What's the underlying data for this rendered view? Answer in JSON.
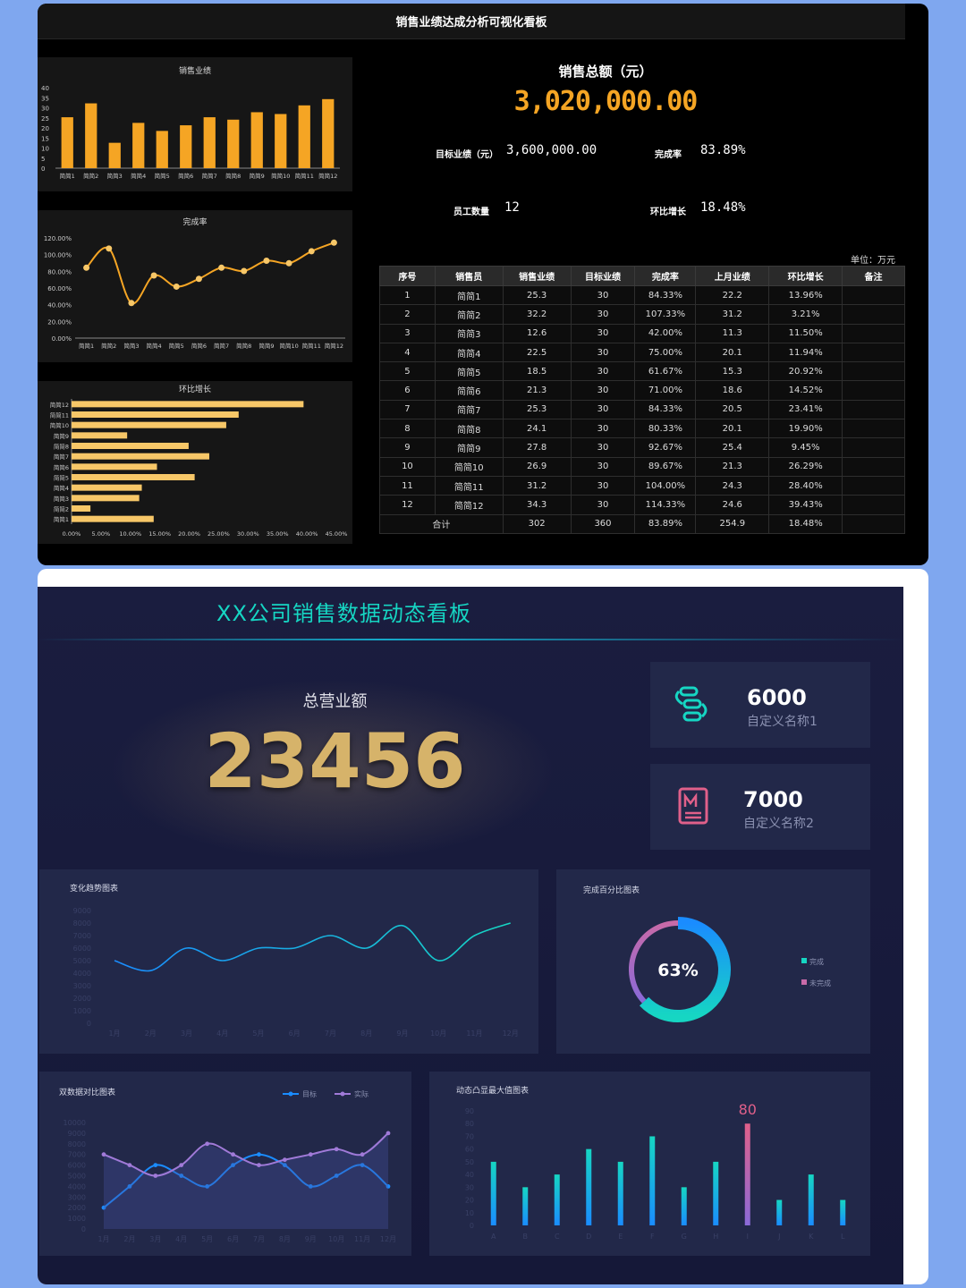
{
  "top": {
    "title": "销售业绩达成分析可视化看板",
    "sales_total_label": "销售总额（元）",
    "sales_total_value": "3,020,000.00",
    "target_label": "目标业绩（元）",
    "target_value": "3,600,000.00",
    "rate_label": "完成率",
    "rate_value": "83.89%",
    "staff_label": "员工数量",
    "staff_value": "12",
    "growth_label": "环比增长",
    "growth_value": "18.48%",
    "unit": "单位：万元",
    "table": {
      "headers": [
        "序号",
        "销售员",
        "销售业绩",
        "目标业绩",
        "完成率",
        "上月业绩",
        "环比增长",
        "备注"
      ],
      "rows": [
        [
          "1",
          "简简1",
          "25.3",
          "30",
          "84.33%",
          "22.2",
          "13.96%",
          ""
        ],
        [
          "2",
          "简简2",
          "32.2",
          "30",
          "107.33%",
          "31.2",
          "3.21%",
          ""
        ],
        [
          "3",
          "简简3",
          "12.6",
          "30",
          "42.00%",
          "11.3",
          "11.50%",
          ""
        ],
        [
          "4",
          "简简4",
          "22.5",
          "30",
          "75.00%",
          "20.1",
          "11.94%",
          ""
        ],
        [
          "5",
          "简简5",
          "18.5",
          "30",
          "61.67%",
          "15.3",
          "20.92%",
          ""
        ],
        [
          "6",
          "简简6",
          "21.3",
          "30",
          "71.00%",
          "18.6",
          "14.52%",
          ""
        ],
        [
          "7",
          "简简7",
          "25.3",
          "30",
          "84.33%",
          "20.5",
          "23.41%",
          ""
        ],
        [
          "8",
          "简简8",
          "24.1",
          "30",
          "80.33%",
          "20.1",
          "19.90%",
          ""
        ],
        [
          "9",
          "简简9",
          "27.8",
          "30",
          "92.67%",
          "25.4",
          "9.45%",
          ""
        ],
        [
          "10",
          "简简10",
          "26.9",
          "30",
          "89.67%",
          "21.3",
          "26.29%",
          ""
        ],
        [
          "11",
          "简简11",
          "31.2",
          "30",
          "104.00%",
          "24.3",
          "28.40%",
          ""
        ],
        [
          "12",
          "简简12",
          "34.3",
          "30",
          "114.33%",
          "24.6",
          "39.43%",
          ""
        ]
      ],
      "total": [
        "合计",
        "302",
        "360",
        "83.89%",
        "254.9",
        "18.48%",
        ""
      ]
    }
  },
  "bottom": {
    "title": "XX公司销售数据动态看板",
    "total_label": "总营业额",
    "total_value": "23456",
    "card1": {
      "value": "6000",
      "name": "自定义名称1"
    },
    "card2": {
      "value": "7000",
      "name": "自定义名称2"
    }
  },
  "colors": {
    "orange": "#f5a524",
    "teal": "#16d6c3",
    "blue": "#1a8cff",
    "purple": "#a07ad8",
    "pink": "#e0608a"
  },
  "chart_data": [
    {
      "type": "bar",
      "title": "销售业绩",
      "categories": [
        "简简1",
        "简简2",
        "简简3",
        "简简4",
        "简简5",
        "简简6",
        "简简7",
        "简简8",
        "简简9",
        "简简10",
        "简简11",
        "简简12"
      ],
      "values": [
        25.3,
        32.2,
        12.6,
        22.5,
        18.5,
        21.3,
        25.3,
        24.1,
        27.8,
        26.9,
        31.2,
        34.3
      ],
      "ylim": [
        0,
        40
      ],
      "yticks": [
        "0",
        "5",
        "10",
        "15",
        "20",
        "25",
        "30",
        "35",
        "40"
      ]
    },
    {
      "type": "line",
      "title": "完成率",
      "categories": [
        "简简1",
        "简简2",
        "简简3",
        "简简4",
        "简简5",
        "简简6",
        "简简7",
        "简简8",
        "简简9",
        "简简10",
        "简简11",
        "简简12"
      ],
      "values": [
        84.33,
        107.33,
        42.0,
        75.0,
        61.67,
        71.0,
        84.33,
        80.33,
        92.67,
        89.67,
        104.0,
        114.33
      ],
      "ylim": [
        0,
        120
      ],
      "yticks": [
        "0.00%",
        "20.00%",
        "40.00%",
        "60.00%",
        "80.00%",
        "100.00%",
        "120.00%"
      ]
    },
    {
      "type": "bar",
      "orientation": "horizontal",
      "title": "环比增长",
      "categories": [
        "简简1",
        "简简2",
        "简简3",
        "简简4",
        "简简5",
        "简简6",
        "简简7",
        "简简8",
        "简简9",
        "简简10",
        "简简11",
        "简简12"
      ],
      "values": [
        13.96,
        3.21,
        11.5,
        11.94,
        20.92,
        14.52,
        23.41,
        19.9,
        9.45,
        26.29,
        28.4,
        39.43
      ],
      "xlim": [
        0,
        45
      ],
      "xticks": [
        "0.00%",
        "5.00%",
        "10.00%",
        "15.00%",
        "20.00%",
        "25.00%",
        "30.00%",
        "35.00%",
        "40.00%",
        "45.00%"
      ]
    },
    {
      "type": "line",
      "title": "变化趋势图表",
      "categories": [
        "1月",
        "2月",
        "3月",
        "4月",
        "5月",
        "6月",
        "7月",
        "8月",
        "9月",
        "10月",
        "11月",
        "12月"
      ],
      "values": [
        5000,
        4200,
        6000,
        5000,
        6000,
        6000,
        7000,
        6000,
        7800,
        5000,
        7000,
        8000
      ],
      "ylim": [
        0,
        9000
      ],
      "yticks": [
        "0",
        "1000",
        "2000",
        "3000",
        "4000",
        "5000",
        "6000",
        "7000",
        "8000",
        "9000"
      ]
    },
    {
      "type": "pie",
      "title": "完成百分比图表",
      "center_label": "63%",
      "slices": [
        {
          "name": "完成",
          "value": 63
        },
        {
          "name": "未完成",
          "value": 37
        }
      ]
    },
    {
      "type": "line",
      "title": "双数据对比图表",
      "categories": [
        "1月",
        "2月",
        "3月",
        "4月",
        "5月",
        "6月",
        "7月",
        "8月",
        "9月",
        "10月",
        "11月",
        "12月"
      ],
      "series": [
        {
          "name": "目标",
          "values": [
            2000,
            4000,
            6000,
            5000,
            4000,
            6000,
            7000,
            6000,
            4000,
            5000,
            6000,
            4000
          ]
        },
        {
          "name": "实际",
          "values": [
            7000,
            6000,
            5000,
            6000,
            8000,
            7000,
            6000,
            6500,
            7000,
            7500,
            7000,
            9000
          ]
        }
      ],
      "ylim": [
        0,
        10000
      ],
      "yticks": [
        "0",
        "1000",
        "2000",
        "3000",
        "4000",
        "5000",
        "6000",
        "7000",
        "8000",
        "9000",
        "10000"
      ]
    },
    {
      "type": "bar",
      "title": "动态凸显最大值图表",
      "categories": [
        "A",
        "B",
        "C",
        "D",
        "E",
        "F",
        "G",
        "H",
        "I",
        "J",
        "K",
        "L"
      ],
      "values": [
        50,
        30,
        40,
        60,
        50,
        70,
        30,
        50,
        80,
        20,
        40,
        20
      ],
      "highlight_label": "80",
      "ylim": [
        0,
        90
      ],
      "yticks": [
        "0",
        "10",
        "20",
        "30",
        "40",
        "50",
        "60",
        "70",
        "80",
        "90"
      ]
    }
  ]
}
